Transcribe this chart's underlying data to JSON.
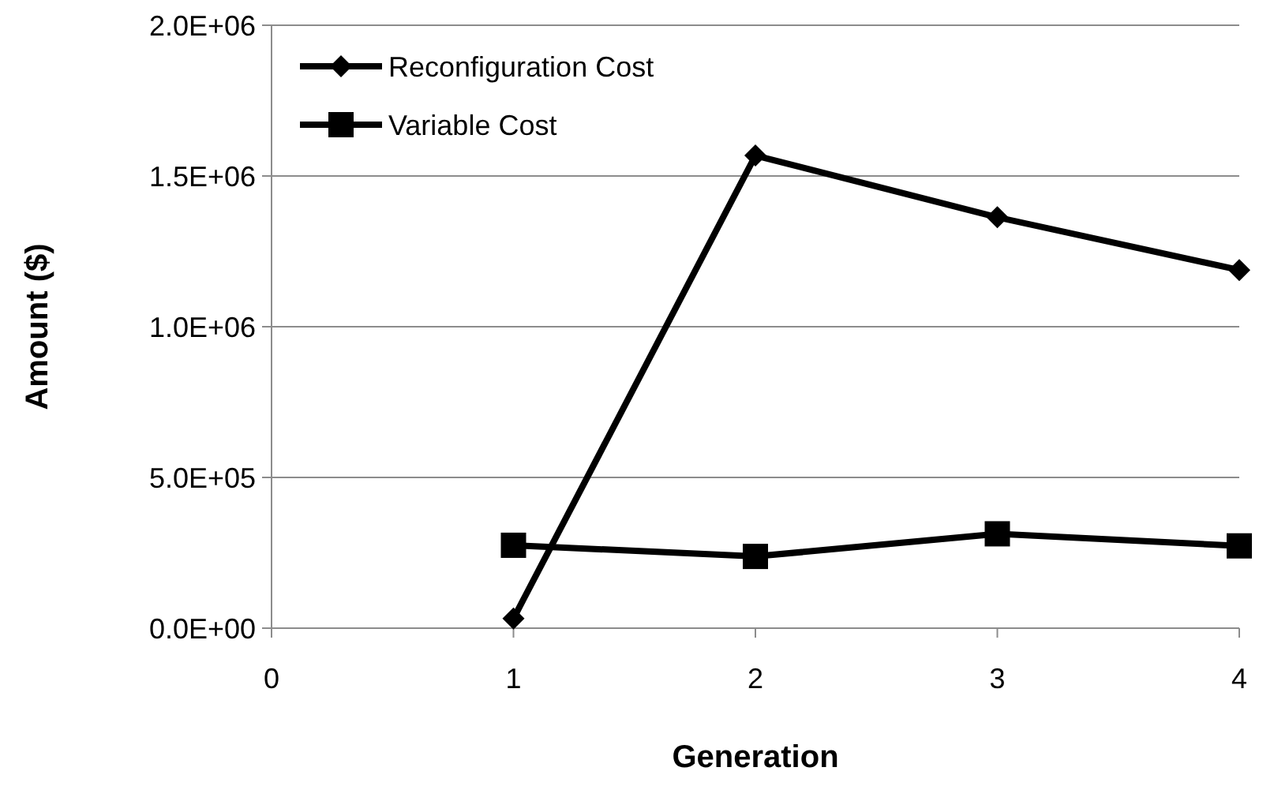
{
  "chart_data": {
    "type": "line",
    "xlabel": "Generation",
    "ylabel": "Amount ($)",
    "x": [
      1,
      2,
      3,
      4
    ],
    "series": [
      {
        "name": "Reconfiguration Cost",
        "color": "#000000",
        "marker": "diamond",
        "values": [
          32000,
          1568000,
          1363000,
          1188000
        ]
      },
      {
        "name": "Variable Cost",
        "color": "#000000",
        "marker": "square",
        "values": [
          275000,
          238000,
          313000,
          273000
        ]
      }
    ],
    "xlim": [
      0,
      4
    ],
    "xticks": [
      0,
      1,
      2,
      3,
      4
    ],
    "ylim": [
      0,
      2000000
    ],
    "yticks": [
      {
        "value": 0,
        "label": "0.0E+00"
      },
      {
        "value": 500000,
        "label": "5.0E+05"
      },
      {
        "value": 1000000,
        "label": "1.0E+06"
      },
      {
        "value": 1500000,
        "label": "1.5E+06"
      },
      {
        "value": 2000000,
        "label": "2.0E+06"
      }
    ],
    "grid": "y",
    "legend": "top left"
  }
}
